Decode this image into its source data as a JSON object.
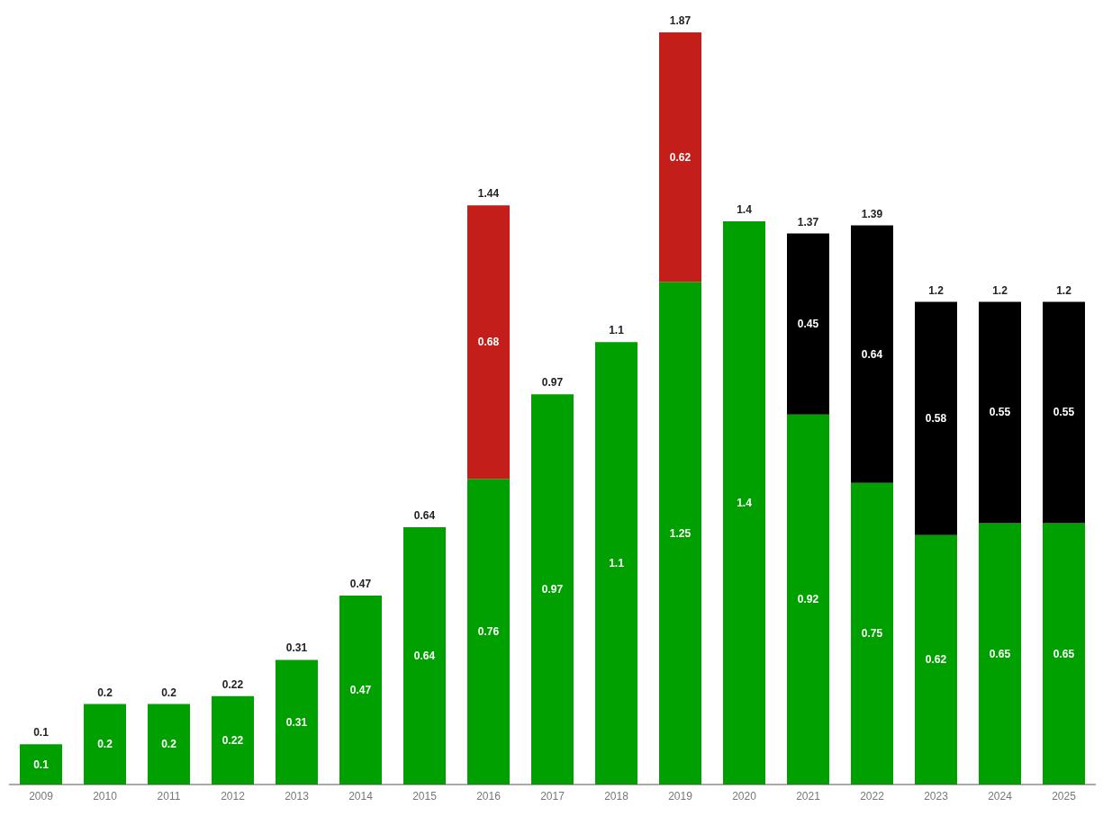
{
  "chart_data": {
    "type": "bar",
    "stacked": true,
    "data_labels": true,
    "categories": [
      "2009",
      "2010",
      "2011",
      "2012",
      "2013",
      "2014",
      "2015",
      "2016",
      "2017",
      "2018",
      "2019",
      "2020",
      "2021",
      "2022",
      "2023",
      "2024",
      "2025"
    ],
    "series": [
      {
        "color": "#00a000",
        "values": [
          0.1,
          0.2,
          0.2,
          0.22,
          0.31,
          0.47,
          0.64,
          0.76,
          0.97,
          1.1,
          1.25,
          1.4,
          0.92,
          0.75,
          0.62,
          0.65,
          0.65
        ]
      },
      {
        "color": "#c41e1a",
        "values": [
          null,
          null,
          null,
          null,
          null,
          null,
          null,
          0.68,
          null,
          null,
          0.62,
          null,
          null,
          null,
          null,
          null,
          null
        ]
      },
      {
        "color": "#000000",
        "values": [
          null,
          null,
          null,
          null,
          null,
          null,
          null,
          null,
          null,
          null,
          null,
          null,
          0.45,
          0.64,
          0.58,
          0.55,
          0.55
        ]
      }
    ],
    "totals": [
      "0.1",
      "0.2",
      "0.2",
      "0.22",
      "0.31",
      "0.47",
      "0.64",
      "1.44",
      "0.97",
      "1.1",
      "1.87",
      "1.4",
      "1.37",
      "1.39",
      "1.2",
      "1.2",
      "1.2"
    ]
  }
}
